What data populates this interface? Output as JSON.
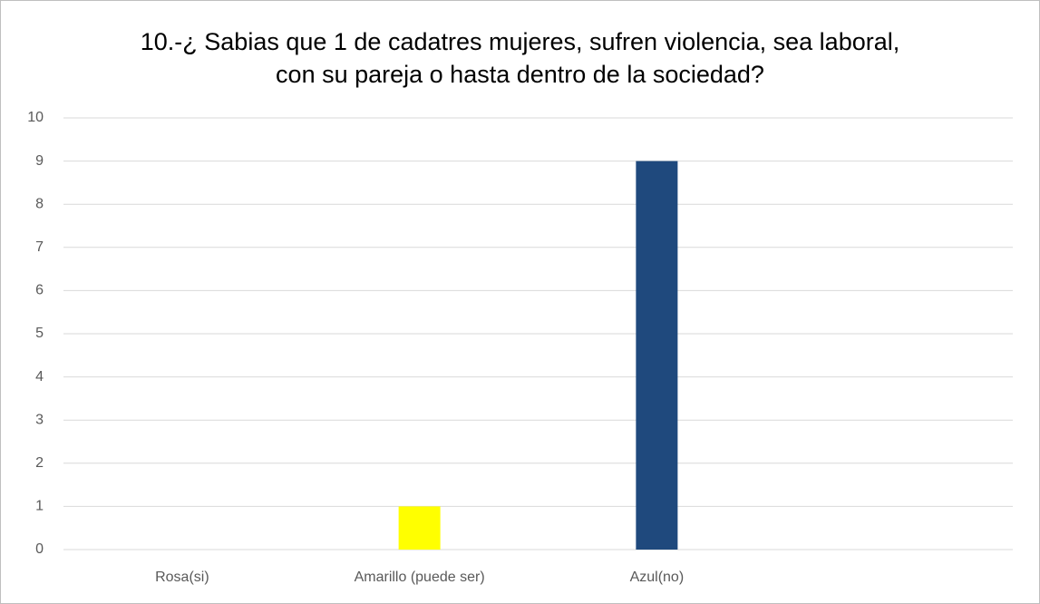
{
  "chart_data": {
    "type": "bar",
    "title": "10.-¿ Sabias que 1 de cadatres mujeres, sufren violencia, sea laboral, con su pareja o hasta dentro de la sociedad?",
    "categories": [
      "Rosa(si)",
      "Amarillo (puede ser)",
      "Azul(no)",
      null
    ],
    "values": [
      0,
      1,
      9,
      null
    ],
    "colors": [
      null,
      "#ffff00",
      "#1f497d",
      null
    ],
    "ylim": [
      0,
      10
    ],
    "yticks": [
      0,
      1,
      2,
      3,
      4,
      5,
      6,
      7,
      8,
      9,
      10
    ],
    "grid": true
  }
}
